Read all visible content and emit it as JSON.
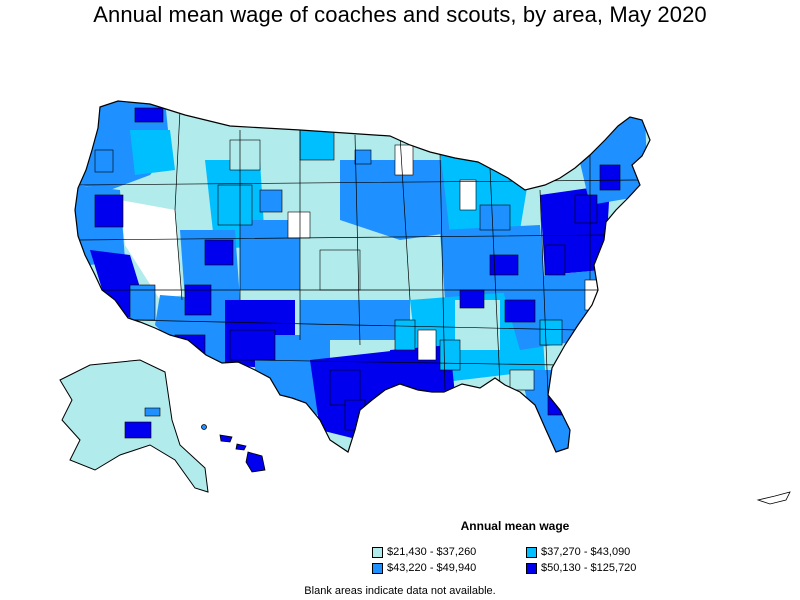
{
  "title": "Annual mean wage of coaches and scouts, by area, May 2020",
  "legend": {
    "title": "Annual mean wage",
    "items": [
      {
        "label": "$21,430 - $37,260",
        "color": "#b2ebeb"
      },
      {
        "label": "$37,270 - $43,090",
        "color": "#00bfff"
      },
      {
        "label": "$43,220 - $49,940",
        "color": "#1e90ff"
      },
      {
        "label": "$50,130 - $125,720",
        "color": "#0000ee"
      }
    ]
  },
  "footnote": "Blank areas indicate data not available.",
  "colors": {
    "tier1": "#b2ebeb",
    "tier2": "#00bfff",
    "tier3": "#1e90ff",
    "tier4": "#0000ee",
    "no_data": "#ffffff",
    "border": "#000000"
  }
}
